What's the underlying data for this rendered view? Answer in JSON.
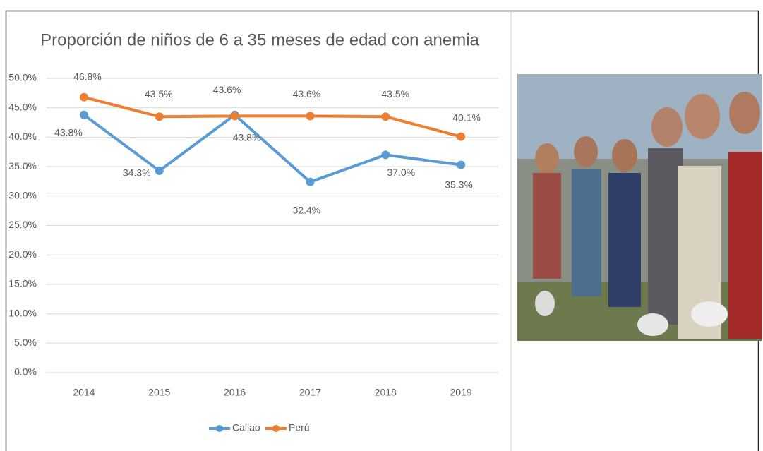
{
  "chart_data": {
    "type": "line",
    "title": "Proporción de niños de 6 a 35 meses de edad con  anemia",
    "categories": [
      "2014",
      "2015",
      "2016",
      "2017",
      "2018",
      "2019"
    ],
    "series": [
      {
        "name": "Callao",
        "color": "#5b9bd5",
        "values": [
          43.8,
          34.3,
          43.8,
          32.4,
          37.0,
          35.3
        ],
        "value_labels": [
          "43.8%",
          "34.3%",
          "43.8%",
          "32.4%",
          "37.0%",
          "35.3%"
        ]
      },
      {
        "name": "Perú",
        "color": "#ed7d31",
        "values": [
          46.8,
          43.5,
          43.6,
          43.6,
          43.5,
          40.1
        ],
        "value_labels": [
          "46.8%",
          "43.5%",
          "43.6%",
          "43.6%",
          "43.5%",
          "40.1%"
        ]
      }
    ],
    "ylim": [
      0,
      50
    ],
    "yticks": [
      {
        "value": 0,
        "label": "0.0%"
      },
      {
        "value": 5,
        "label": "5.0%"
      },
      {
        "value": 10,
        "label": "10.0%"
      },
      {
        "value": 15,
        "label": "15.0%"
      },
      {
        "value": 20,
        "label": "20.0%"
      },
      {
        "value": 25,
        "label": "25.0%"
      },
      {
        "value": 30,
        "label": "30.0%"
      },
      {
        "value": 35,
        "label": "35.0%"
      },
      {
        "value": 40,
        "label": "40.0%"
      },
      {
        "value": 45,
        "label": "45.0%"
      },
      {
        "value": 50,
        "label": "50.0%"
      }
    ],
    "grid": true,
    "legend": "bottom"
  }
}
